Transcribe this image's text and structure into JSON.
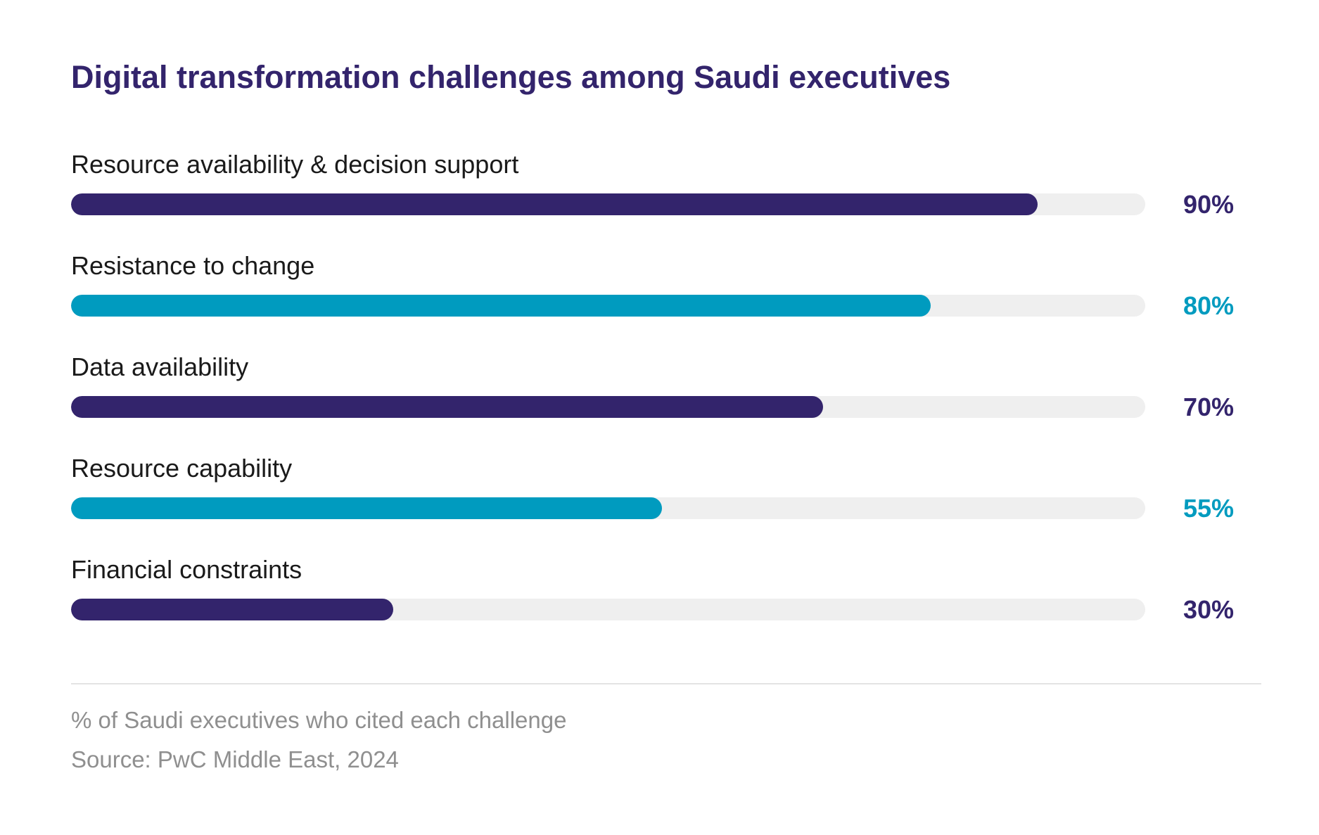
{
  "chart_data": {
    "type": "bar",
    "orientation": "horizontal",
    "title": "Digital transformation challenges among Saudi executives",
    "categories": [
      "Resource availability & decision support",
      "Resistance to change",
      "Data availability",
      "Resource capability",
      "Financial constraints"
    ],
    "values": [
      90,
      80,
      70,
      55,
      30
    ],
    "value_labels": [
      "90%",
      "80%",
      "70%",
      "55%",
      "30%"
    ],
    "bar_colors": [
      "#33246c",
      "#009bbf",
      "#33246c",
      "#009bbf",
      "#33246c"
    ],
    "track_color": "#efefef",
    "xlim": [
      0,
      100
    ],
    "grid": false,
    "legend": "none",
    "note": "% of Saudi executives who cited each challenge",
    "source": "Source: PwC Middle East, 2024"
  },
  "colors": {
    "title": "#33246c",
    "primary": "#33246c",
    "accent": "#009bbf",
    "label": "#1a1a1a",
    "footnote": "#8f8f8f"
  }
}
